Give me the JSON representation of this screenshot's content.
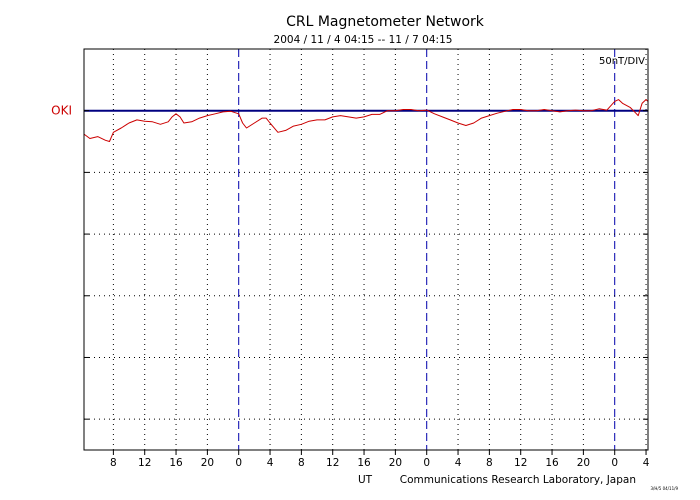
{
  "chart_data": {
    "type": "line",
    "title": "CRL Magnetometer Network",
    "subtitle": "2004 / 11 / 4   04:15 -- 11 / 7   04:15",
    "scale_label": "50nT/DIV",
    "xlabel": "UT",
    "credit": "Communications Research Laboratory, Japan",
    "credit_small": "3/H/5 04/11/9",
    "x_range_hours": [
      4.25,
      76.25
    ],
    "x_ticks": [
      {
        "hour": 8,
        "label": "8"
      },
      {
        "hour": 12,
        "label": "12"
      },
      {
        "hour": 16,
        "label": "16"
      },
      {
        "hour": 20,
        "label": "20"
      },
      {
        "hour": 24,
        "label": "0"
      },
      {
        "hour": 28,
        "label": "4"
      },
      {
        "hour": 32,
        "label": "8"
      },
      {
        "hour": 36,
        "label": "12"
      },
      {
        "hour": 40,
        "label": "16"
      },
      {
        "hour": 44,
        "label": "20"
      },
      {
        "hour": 48,
        "label": "0"
      },
      {
        "hour": 52,
        "label": "4"
      },
      {
        "hour": 56,
        "label": "8"
      },
      {
        "hour": 60,
        "label": "12"
      },
      {
        "hour": 64,
        "label": "16"
      },
      {
        "hour": 68,
        "label": "20"
      },
      {
        "hour": 72,
        "label": "0"
      },
      {
        "hour": 76,
        "label": "4"
      }
    ],
    "day_boundaries_hours": [
      24,
      48,
      72
    ],
    "y_range_div": [
      -5.5,
      1
    ],
    "y_gridlines_div": [
      0,
      -1,
      -2,
      -3,
      -4,
      -5
    ],
    "grid": true,
    "series": [
      {
        "name": "OKI",
        "color": "#cc0000",
        "baseline_color": "#000080",
        "x": [
          4.25,
          5,
          6,
          7,
          7.5,
          8,
          9,
          10,
          11,
          12,
          13,
          14,
          15,
          15.5,
          16,
          16.5,
          17,
          18,
          19,
          20,
          21,
          22,
          23,
          24,
          24.5,
          25,
          26,
          27,
          27.5,
          28,
          29,
          30,
          31,
          32,
          33,
          34,
          35,
          36,
          37,
          38,
          39,
          40,
          41,
          42,
          43,
          44,
          45,
          46,
          47,
          48,
          49,
          50,
          51,
          52,
          53,
          54,
          55,
          56,
          57,
          58,
          59,
          60,
          61,
          62,
          63,
          64,
          65,
          66,
          67,
          68,
          69,
          70,
          71,
          72,
          72.5,
          73,
          74,
          75,
          75.5,
          76,
          76.25
        ],
        "y": [
          -0.38,
          -0.45,
          -0.42,
          -0.48,
          -0.5,
          -0.35,
          -0.28,
          -0.2,
          -0.15,
          -0.17,
          -0.18,
          -0.22,
          -0.18,
          -0.1,
          -0.05,
          -0.1,
          -0.2,
          -0.18,
          -0.12,
          -0.08,
          -0.05,
          -0.02,
          -0.01,
          -0.05,
          -0.2,
          -0.28,
          -0.2,
          -0.12,
          -0.12,
          -0.2,
          -0.35,
          -0.32,
          -0.25,
          -0.22,
          -0.17,
          -0.15,
          -0.15,
          -0.1,
          -0.08,
          -0.1,
          -0.12,
          -0.1,
          -0.06,
          -0.06,
          0.0,
          0.0,
          0.02,
          0.02,
          0.0,
          0.01,
          -0.05,
          -0.1,
          -0.15,
          -0.2,
          -0.24,
          -0.2,
          -0.12,
          -0.08,
          -0.04,
          -0.01,
          0.02,
          0.02,
          0.0,
          0.0,
          0.02,
          0.0,
          -0.02,
          0.0,
          0.01,
          0.0,
          0.0,
          0.03,
          0.01,
          0.15,
          0.18,
          0.12,
          0.05,
          -0.08,
          0.12,
          0.18,
          0.15
        ]
      }
    ]
  }
}
